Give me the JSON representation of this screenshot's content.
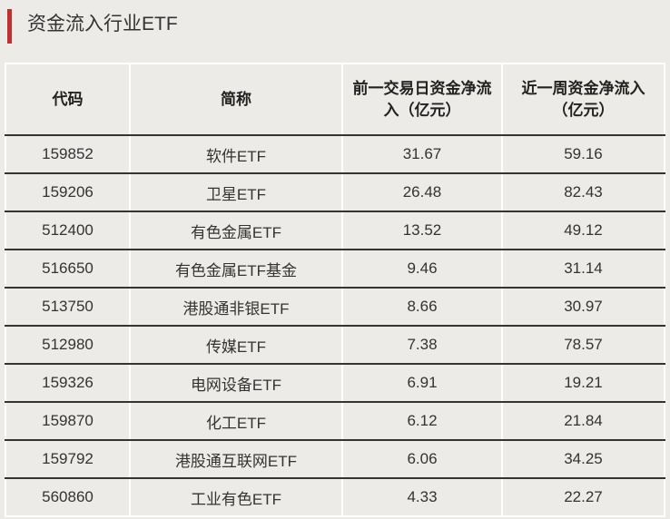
{
  "title": "资金流入行业ETF",
  "colors": {
    "accent": "#c0302e",
    "background": "#ecebe7"
  },
  "table": {
    "headers": [
      "代码",
      "简称",
      "前一交易日资金净流入（亿元）",
      "近一周资金净流入（亿元）"
    ],
    "rows": [
      [
        "159852",
        "软件ETF",
        "31.67",
        "59.16"
      ],
      [
        "159206",
        "卫星ETF",
        "26.48",
        "82.43"
      ],
      [
        "512400",
        "有色金属ETF",
        "13.52",
        "49.12"
      ],
      [
        "516650",
        "有色金属ETF基金",
        "9.46",
        "31.14"
      ],
      [
        "513750",
        "港股通非银ETF",
        "8.66",
        "30.97"
      ],
      [
        "512980",
        "传媒ETF",
        "7.38",
        "78.57"
      ],
      [
        "159326",
        "电网设备ETF",
        "6.91",
        "19.21"
      ],
      [
        "159870",
        "化工ETF",
        "6.12",
        "21.84"
      ],
      [
        "159792",
        "港股通互联网ETF",
        "6.06",
        "34.25"
      ],
      [
        "560860",
        "工业有色ETF",
        "4.33",
        "22.27"
      ]
    ]
  }
}
